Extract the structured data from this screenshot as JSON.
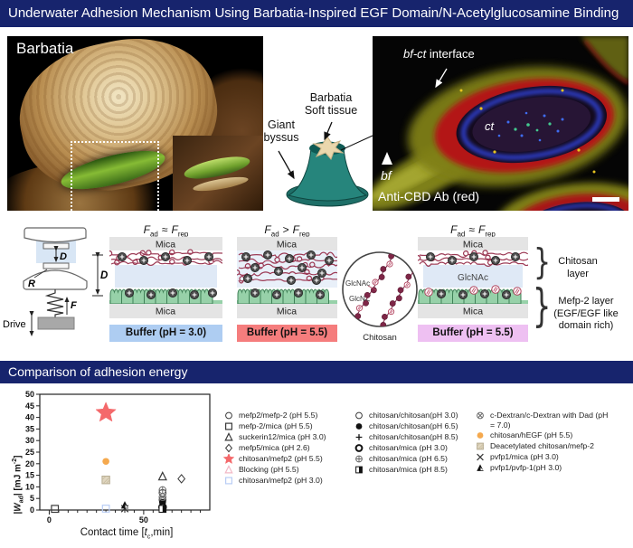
{
  "header1": {
    "title": "Underwater Adhesion Mechanism Using Barbatia-Inspired EGF Domain/N-Acetylglucosamine Binding"
  },
  "header2": {
    "title": "Comparison of adhesion energy"
  },
  "top": {
    "photo_label": "Barbatia",
    "giant_byssus_l1": "Giant",
    "giant_byssus_l2": "byssus",
    "soft_tissue_l1": "Barbatia",
    "soft_tissue_l2": "Soft tissue",
    "fluo": {
      "bfct": "bf-ct",
      "interface": " interface",
      "ct": "ct",
      "bf": "bf",
      "stain": "Anti-CBD Ab (red)"
    }
  },
  "sfa": {
    "d": "D",
    "r": "R",
    "f": "F",
    "drive": "Drive"
  },
  "flabels": {
    "F": "F",
    "ad": "ad",
    "rep": "rep"
  },
  "panels": [
    {
      "relation": "≈",
      "mica_top": "Mica",
      "mica_bottom": "Mica",
      "buffer": "Buffer (pH = 3.0)"
    },
    {
      "relation": ">",
      "mica_top": "Mica",
      "mica_bottom": "Mica",
      "buffer": "Buffer (pH = 5.5)"
    },
    {
      "relation": "≈",
      "mica_top": "Mica",
      "gap": "GlcNAc",
      "mica_bottom": "Mica",
      "buffer": "Buffer (pH = 5.5)"
    }
  ],
  "inset": {
    "glcnac": "GlcNAc",
    "glcn": "GlcN",
    "caption": "Chitosan"
  },
  "layer_labels": {
    "chitosan_l1": "Chitosan",
    "chitosan_l2": "layer",
    "mefp_l1": "Mefp-2 layer",
    "mefp_l2": "(EGF/EGF like",
    "mefp_l3": "domain rich)"
  },
  "chart_labels": {
    "x_pre": "Contact time [",
    "x_it": "t",
    "x_sub": "c",
    "x_post": ",min]",
    "y_pre": "|",
    "y_it": "W",
    "y_sub": "ad",
    "y_mid": "| [mJ m",
    "y_sup": "-2",
    "y_post": "]"
  },
  "colors": {
    "accent_navy": "#17246d",
    "buffer_ph3_blue": "#aecdf2",
    "buffer_ph55_red": "#f57d7d",
    "buffer_ph55_pink": "#eec0f2",
    "star_red": "#f4696b",
    "hegf_orange": "#f5a94e",
    "chitosan_chain": "#9c3a55",
    "mefp_green": "#97d1a9"
  },
  "chart_data": {
    "type": "scatter",
    "title": "",
    "xlabel": "Contact time [tc,min]",
    "ylabel": "|Wad| [mJ m-2]",
    "xlim": [
      -5,
      85
    ],
    "ylim": [
      0,
      50
    ],
    "xtick_step": 5,
    "ytick_step": 5,
    "xticks_labeled": [
      0,
      50
    ],
    "grid": false,
    "legend_position": "right",
    "series": [
      {
        "name": "mefp2/mefp-2 (pH 5.5)",
        "symbol": "circle-open",
        "color": "#3a3a3a",
        "legend_col": 0,
        "points": [
          [
            60,
            7.4
          ]
        ]
      },
      {
        "name": "mefp-2/mica (pH 5.5)",
        "symbol": "square-open",
        "color": "#3a3a3a",
        "legend_col": 0,
        "points": [
          [
            3,
            0.5
          ]
        ]
      },
      {
        "name": "suckerin12/mica (pH 3.0)",
        "symbol": "triangle-open",
        "color": "#3a3a3a",
        "legend_col": 0,
        "points": [
          [
            60,
            14.5
          ]
        ]
      },
      {
        "name": "mefp5/mica (pH 2.6)",
        "symbol": "diamond-open",
        "color": "#3a3a3a",
        "legend_col": 0,
        "points": [
          [
            70,
            13.5
          ]
        ]
      },
      {
        "name": "chitosan/mefp2 (pH 5.5)",
        "symbol": "star",
        "color": "#f4696b",
        "legend_col": 0,
        "points": [
          [
            30,
            42
          ]
        ]
      },
      {
        "name": "Blocking (pH 5.5)",
        "symbol": "triangle-open",
        "color": "#f2b8c6",
        "legend_col": 0,
        "points": []
      },
      {
        "name": "chitosan/mefp2 (pH 3.0)",
        "symbol": "square-open",
        "color": "#b9cdf5",
        "legend_col": 0,
        "points": [
          [
            30,
            0.6
          ]
        ]
      },
      {
        "name": "chitosan/chitosan(pH 3.0)",
        "symbol": "circle-open",
        "color": "#3a3a3a",
        "legend_col": 1,
        "points": [
          [
            60,
            4.4
          ]
        ]
      },
      {
        "name": "chitosan/chitosan(pH 6.5)",
        "symbol": "circle-filled",
        "color": "#111111",
        "legend_col": 1,
        "points": [
          [
            60,
            3.3
          ]
        ]
      },
      {
        "name": "chitosan/chitosan(pH 8.5)",
        "symbol": "plus",
        "color": "#111111",
        "legend_col": 1,
        "points": [
          [
            60,
            2.1
          ]
        ]
      },
      {
        "name": "chitosan/mica (pH 3.0)",
        "symbol": "circle-bold",
        "color": "#111111",
        "legend_col": 1,
        "points": [
          [
            60,
            1.2
          ]
        ]
      },
      {
        "name": "chitosan/mica (pH 6.5)",
        "symbol": "circle-plus",
        "color": "#6a6a6a",
        "legend_col": 1,
        "points": [
          [
            60,
            8.6
          ]
        ]
      },
      {
        "name": "chitosan/mica (pH 8.5)",
        "symbol": "square-half",
        "color": "#111111",
        "legend_col": 1,
        "points": [
          [
            60,
            0.5
          ]
        ]
      },
      {
        "name": "c-Dextran/c-Dextran with Dad (pH = 7.0)",
        "symbol": "circle-cross",
        "color": "#6a6a6a",
        "legend_col": 2,
        "points": [
          [
            60,
            5.6
          ]
        ]
      },
      {
        "name": "chitosan/hEGF (pH 5.5)",
        "symbol": "circle-filled",
        "color": "#f5a94e",
        "legend_col": 2,
        "points": [
          [
            30,
            21
          ]
        ]
      },
      {
        "name": "Deacetylated chitosan/mefp-2",
        "symbol": "square-hatch",
        "color": "#e0d6c0",
        "legend_col": 2,
        "points": [
          [
            30,
            13
          ]
        ]
      },
      {
        "name": "pvfp1/mica (pH 3.0)",
        "symbol": "x",
        "color": "#3a3a3a",
        "legend_col": 2,
        "points": [
          [
            40,
            0.6
          ]
        ]
      },
      {
        "name": "pvfp1/pvfp-1(pH 3.0)",
        "symbol": "triangle-half",
        "color": "#111111",
        "legend_col": 2,
        "points": [
          [
            40,
            2.1
          ]
        ]
      }
    ]
  }
}
